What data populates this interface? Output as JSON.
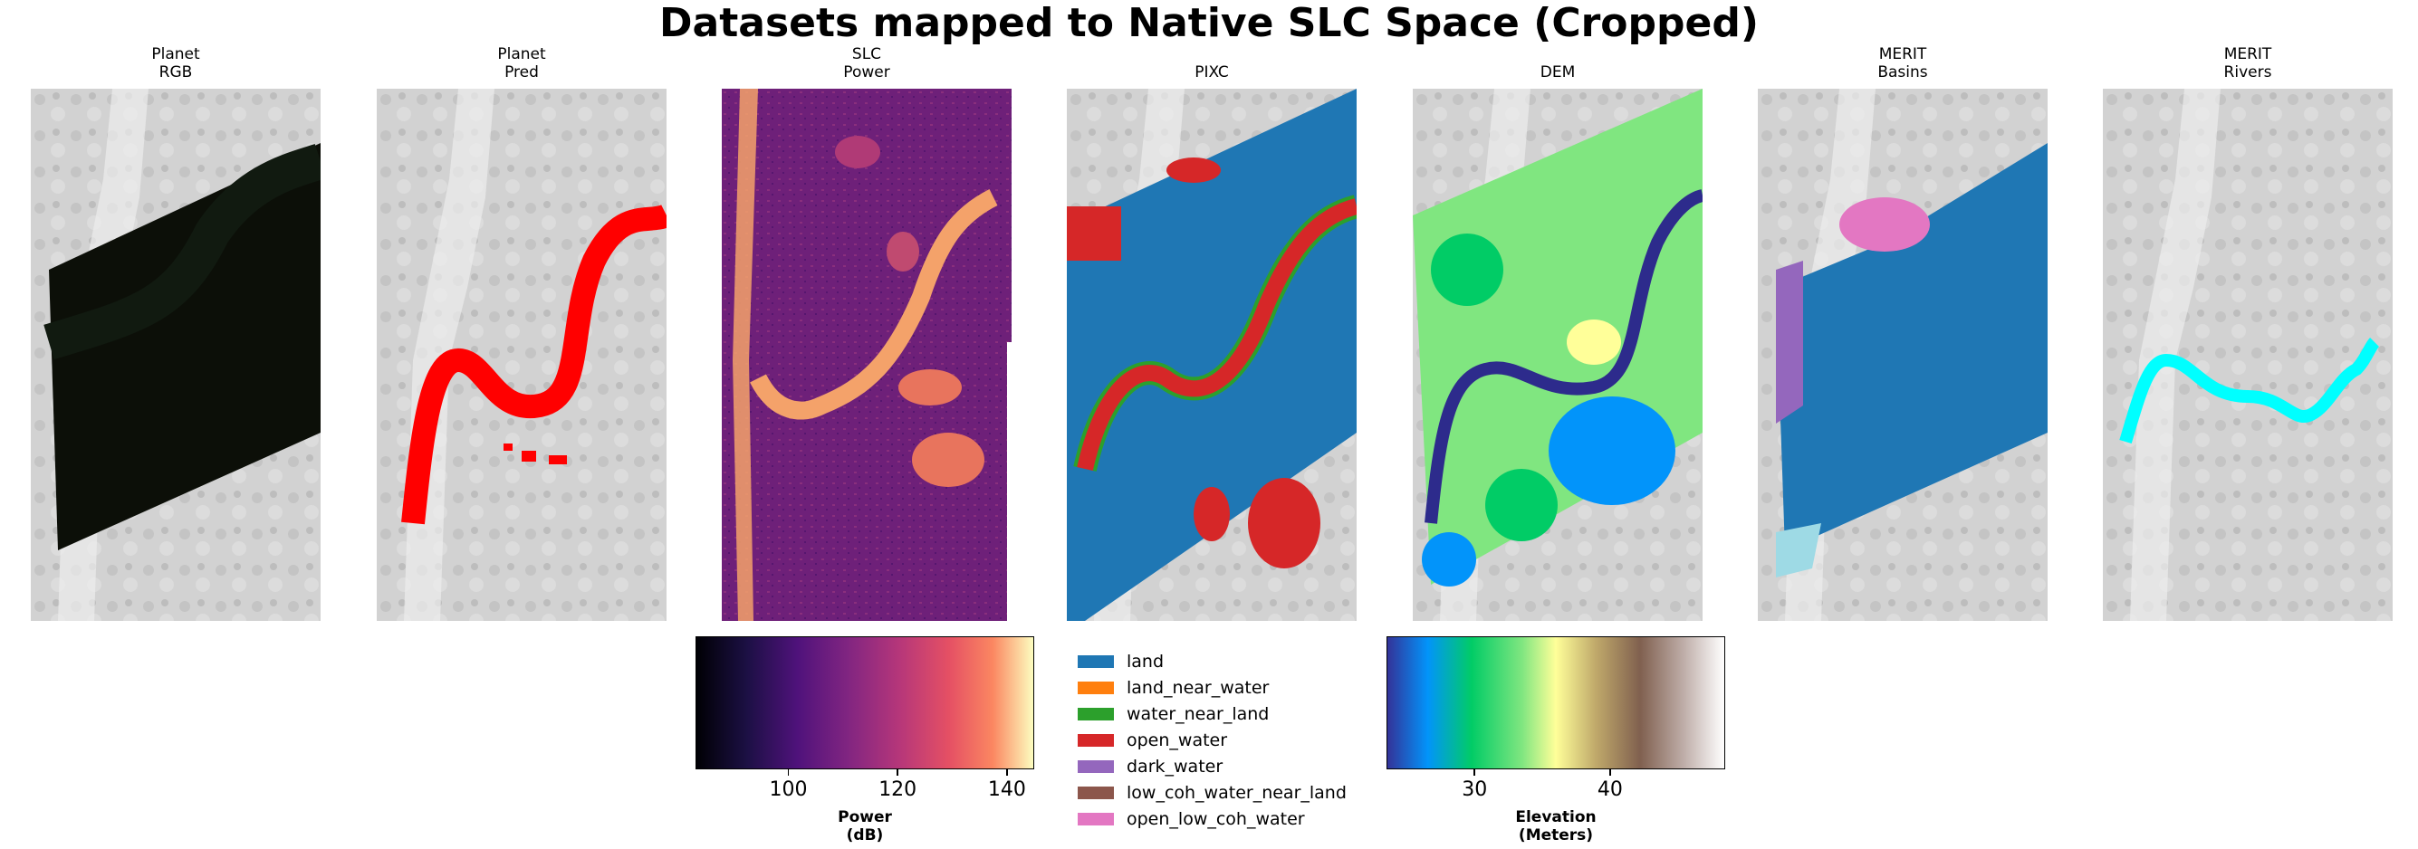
{
  "title": "Datasets mapped to Native SLC Space (Cropped)",
  "panels": [
    {
      "name": "planet-rgb",
      "title_line1": "Planet",
      "title_line2": "RGB"
    },
    {
      "name": "planet-pred",
      "title_line1": "Planet",
      "title_line2": "Pred"
    },
    {
      "name": "slc-power",
      "title_line1": "SLC",
      "title_line2": "Power"
    },
    {
      "name": "pixc",
      "title_line1": "",
      "title_line2": "PIXC"
    },
    {
      "name": "dem",
      "title_line1": "",
      "title_line2": "DEM"
    },
    {
      "name": "merit-basins",
      "title_line1": "MERIT",
      "title_line2": "Basins"
    },
    {
      "name": "merit-rivers",
      "title_line1": "MERIT",
      "title_line2": "Rivers"
    }
  ],
  "chart_data": [
    {
      "type": "heatmap",
      "name": "power-colorbar",
      "colormap": "magma",
      "range": [
        83,
        145
      ],
      "ticks": [
        100,
        120,
        140
      ],
      "tick_labels": [
        "100",
        "120",
        "140"
      ],
      "label_line1": "Power",
      "label_line2": "(dB)"
    },
    {
      "type": "heatmap",
      "name": "elevation-colorbar",
      "colormap": "terrain",
      "range": [
        23.5,
        48.5
      ],
      "ticks": [
        30,
        40
      ],
      "tick_labels": [
        "30",
        "40"
      ],
      "label_line1": "Elevation",
      "label_line2": "(Meters)"
    },
    {
      "type": "legend",
      "name": "pixc-classes",
      "entries": [
        {
          "label": "land",
          "color": "#1f77b4"
        },
        {
          "label": "land_near_water",
          "color": "#ff7f0e"
        },
        {
          "label": "water_near_land",
          "color": "#2ca02c"
        },
        {
          "label": "open_water",
          "color": "#d62728"
        },
        {
          "label": "dark_water",
          "color": "#9467bd"
        },
        {
          "label": "low_coh_water_near_land",
          "color": "#8c564b"
        },
        {
          "label": "open_low_coh_water",
          "color": "#e377c2"
        }
      ]
    }
  ],
  "colors": {
    "rgb_mask": "#0c0f08",
    "pred_water": "#ff0000",
    "rivers": "#00ffff",
    "dem_river": "#2d2b8c",
    "basin_main": "#1f77b4",
    "basin_purple": "#9467bd",
    "basin_pink": "#e377c2",
    "basin_light": "#9edae5",
    "slc_bg": "#6a1f7a",
    "slc_bright": "#f4a26a"
  }
}
